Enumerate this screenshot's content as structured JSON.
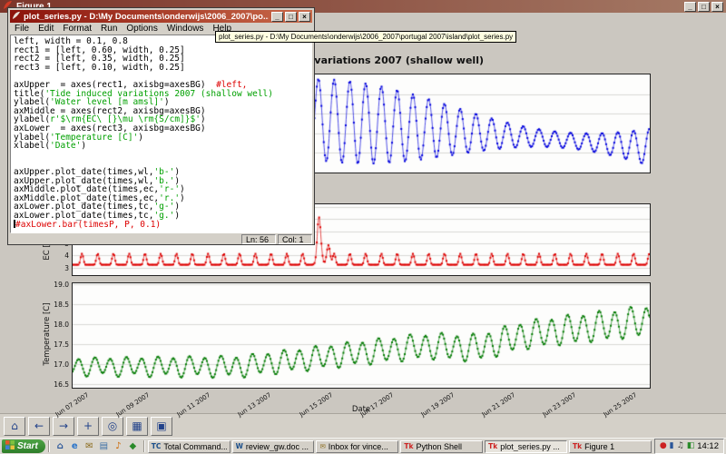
{
  "figure_window": {
    "title": "Figure 1",
    "toolbar_buttons": [
      {
        "name": "home-icon",
        "glyph": "⌂"
      },
      {
        "name": "back-icon",
        "glyph": "←"
      },
      {
        "name": "forward-icon",
        "glyph": "→"
      },
      {
        "name": "pan-icon",
        "glyph": "+"
      },
      {
        "name": "zoom-icon",
        "glyph": "◎"
      },
      {
        "name": "subplots-icon",
        "glyph": "▦"
      },
      {
        "name": "save-icon",
        "glyph": "▣"
      }
    ]
  },
  "window_controls": {
    "minimize": "_",
    "maximize": "□",
    "close": "×"
  },
  "editor_window": {
    "title": "plot_series.py - D:\\My Documents\\onderwijs\\2006_2007\\po...",
    "menus": [
      "File",
      "Edit",
      "Format",
      "Run",
      "Options",
      "Windows",
      "Help"
    ],
    "status_line": "Ln: 56",
    "status_col": "Col: 1",
    "code_lines": [
      {
        "segs": [
          {
            "t": "left, width = 0.1, 0.8",
            "c": "k"
          }
        ]
      },
      {
        "segs": [
          {
            "t": "rect1 = [left, 0.60, width, 0.25]",
            "c": "k"
          }
        ]
      },
      {
        "segs": [
          {
            "t": "rect2 = [left, 0.35, width, 0.25]",
            "c": "k"
          }
        ]
      },
      {
        "segs": [
          {
            "t": "rect3 = [left, 0.10, width, 0.25]",
            "c": "k"
          }
        ]
      },
      {
        "segs": [
          {
            "t": "",
            "c": "k"
          }
        ]
      },
      {
        "segs": [
          {
            "t": "axUpper  = axes(rect1, axisbg=axesBG)  ",
            "c": "k"
          },
          {
            "t": "#left,",
            "c": "c"
          }
        ]
      },
      {
        "segs": [
          {
            "t": "title(",
            "c": "k"
          },
          {
            "t": "'Tide induced variations 2007 (shallow well)",
            "c": "s"
          }
        ]
      },
      {
        "segs": [
          {
            "t": "ylabel(",
            "c": "k"
          },
          {
            "t": "'Water level [m amsl]'",
            "c": "s"
          },
          {
            "t": ")",
            "c": "k"
          }
        ]
      },
      {
        "segs": [
          {
            "t": "axMiddle = axes(rect2, axisbg=axesBG)",
            "c": "k"
          }
        ]
      },
      {
        "segs": [
          {
            "t": "ylabel(",
            "c": "k"
          },
          {
            "t": "r'$\\rm{EC\\ [}\\mu \\rm{S/cm]}$'",
            "c": "s"
          },
          {
            "t": ")",
            "c": "k"
          }
        ]
      },
      {
        "segs": [
          {
            "t": "axLower  = axes(rect3, axisbg=axesBG)",
            "c": "k"
          }
        ]
      },
      {
        "segs": [
          {
            "t": "ylabel(",
            "c": "k"
          },
          {
            "t": "'Temperature [C]'",
            "c": "s"
          },
          {
            "t": ")",
            "c": "k"
          }
        ]
      },
      {
        "segs": [
          {
            "t": "xlabel(",
            "c": "k"
          },
          {
            "t": "'Date'",
            "c": "s"
          },
          {
            "t": ")",
            "c": "k"
          }
        ]
      },
      {
        "segs": [
          {
            "t": "",
            "c": "k"
          }
        ]
      },
      {
        "segs": [
          {
            "t": "",
            "c": "k"
          }
        ]
      },
      {
        "segs": [
          {
            "t": "axUpper.plot_date(times,wl,",
            "c": "k"
          },
          {
            "t": "'b-'",
            "c": "s"
          },
          {
            "t": ")",
            "c": "k"
          }
        ]
      },
      {
        "segs": [
          {
            "t": "axUpper.plot_date(times,wl,",
            "c": "k"
          },
          {
            "t": "'b.'",
            "c": "s"
          },
          {
            "t": ")",
            "c": "k"
          }
        ]
      },
      {
        "segs": [
          {
            "t": "axMiddle.plot_date(times,ec,",
            "c": "k"
          },
          {
            "t": "'r-'",
            "c": "s"
          },
          {
            "t": ")",
            "c": "k"
          }
        ]
      },
      {
        "segs": [
          {
            "t": "axMiddle.plot_date(times,ec,",
            "c": "k"
          },
          {
            "t": "'r.'",
            "c": "s"
          },
          {
            "t": ")",
            "c": "k"
          }
        ]
      },
      {
        "segs": [
          {
            "t": "axLower.plot_date(times,tc,",
            "c": "k"
          },
          {
            "t": "'g-'",
            "c": "s"
          },
          {
            "t": ")",
            "c": "k"
          }
        ]
      },
      {
        "segs": [
          {
            "t": "axLower.plot_date(times,tc,",
            "c": "k"
          },
          {
            "t": "'g.'",
            "c": "s"
          },
          {
            "t": ")",
            "c": "k"
          }
        ]
      },
      {
        "cursor": true,
        "segs": [
          {
            "t": "#axLower.bar(timesP, P, 0.1)",
            "c": "c"
          }
        ]
      }
    ]
  },
  "tooltip": {
    "text": "plot_series.py - D:\\My Documents\\onderwijs\\2006_2007\\portugal 2007\\island\\plot_series.py"
  },
  "taskbar": {
    "start_label": "Start",
    "quick_launch": [
      {
        "icon": "show-desktop-icon",
        "glyph": "⌂",
        "color": "#2a5699"
      },
      {
        "icon": "internet-explorer-icon",
        "glyph": "e",
        "color": "#2a74c9"
      },
      {
        "icon": "outlook-icon",
        "glyph": "✉",
        "color": "#8a6a1a"
      },
      {
        "icon": "explorer-icon",
        "glyph": "▤",
        "color": "#3a6ea5"
      },
      {
        "icon": "media-player-icon",
        "glyph": "♪",
        "color": "#cc6600"
      },
      {
        "icon": "app-icon",
        "glyph": "◆",
        "color": "#2a8a2a"
      }
    ],
    "tasks": [
      {
        "label": "Total Command...",
        "icon": "total-commander-icon",
        "glyph": "TC",
        "color": "#1a4e8a",
        "active": false
      },
      {
        "label": "review_gw.doc ...",
        "icon": "word-document-icon",
        "glyph": "W",
        "color": "#1a4e8a",
        "active": false
      },
      {
        "label": "Inbox for vince...",
        "icon": "mail-inbox-icon",
        "glyph": "✉",
        "color": "#8a6a1a",
        "active": false
      },
      {
        "label": "Python Shell",
        "icon": "python-shell-icon",
        "glyph": "Tk",
        "color": "#cc2222",
        "active": false
      },
      {
        "label": "plot_series.py ...",
        "icon": "python-editor-icon",
        "glyph": "Tk",
        "color": "#cc2222",
        "active": true
      },
      {
        "label": "Figure 1",
        "icon": "figure-window-icon",
        "glyph": "Tk",
        "color": "#cc2222",
        "active": false
      }
    ],
    "tray_icons": [
      {
        "icon": "antivirus-tray-icon",
        "glyph": "●",
        "color": "#cc2222"
      },
      {
        "icon": "network-tray-icon",
        "glyph": "▮",
        "color": "#2a5699"
      },
      {
        "icon": "volume-tray-icon",
        "glyph": "♫",
        "color": "#444444"
      },
      {
        "icon": "updates-tray-icon",
        "glyph": "◧",
        "color": "#2a8a2a"
      }
    ],
    "clock": "14:12"
  },
  "chart_data": [
    {
      "type": "line",
      "axes": "upper",
      "title": "Tide induced variations 2007 (shallow well)",
      "ylabel": "Water level [m amsl]",
      "series_color": "#0000dd",
      "marker": "point",
      "x_range_days": [
        6.55,
        25.5
      ],
      "x_unit": "day of June 2007",
      "ylim": [
        0,
        1
      ],
      "yticks": [],
      "gridlines": [
        0.2,
        0.4,
        0.6,
        0.8
      ],
      "signal": {
        "kind": "tide",
        "period": 0.5175,
        "mean_start": 0.75,
        "mean_slope": -0.026,
        "amp_base": 0.08,
        "amp_spring": 0.34,
        "spring_center": 15.3,
        "spring_period": 14.77
      }
    },
    {
      "type": "line",
      "axes": "middle",
      "ylabel": "EC [µS/cm]",
      "series_color": "#dd0000",
      "marker": "point",
      "x_range_days": [
        6.55,
        25.5
      ],
      "ylim": [
        2.4,
        8.2
      ],
      "yticks": [
        {
          "v": 8,
          "label": "8"
        },
        {
          "v": 7,
          "label": "7"
        },
        {
          "v": 6,
          "label": "6"
        },
        {
          "v": 5,
          "label": "5"
        },
        {
          "v": 4,
          "label": "4"
        },
        {
          "v": 3,
          "label": "3"
        }
      ],
      "signal": {
        "kind": "ec",
        "base": 3.25,
        "osc_amp": 0.9,
        "period": 0.5175,
        "spikes": [
          {
            "t": 14.65,
            "h": 3.1,
            "w": 0.09
          },
          {
            "t": 14.95,
            "h": 1.6,
            "w": 0.08
          }
        ]
      }
    },
    {
      "type": "line",
      "axes": "lower",
      "ylabel": "Temperature [C]",
      "xlabel": "Date",
      "series_color": "#007a00",
      "marker": "point",
      "x_range_days": [
        6.55,
        25.5
      ],
      "ylim": [
        16.42,
        19.03
      ],
      "yticks": [
        {
          "v": 19.0,
          "label": "19.0"
        },
        {
          "v": 18.5,
          "label": "18.5"
        },
        {
          "v": 18.0,
          "label": "18.0"
        },
        {
          "v": 17.5,
          "label": "17.5"
        },
        {
          "v": 17.0,
          "label": "17.0"
        },
        {
          "v": 16.5,
          "label": "16.5"
        }
      ],
      "xticks": [
        {
          "t": 7,
          "label": "Jun 07 2007"
        },
        {
          "t": 9,
          "label": "Jun 09 2007"
        },
        {
          "t": 11,
          "label": "Jun 11 2007"
        },
        {
          "t": 13,
          "label": "Jun 13 2007"
        },
        {
          "t": 15,
          "label": "Jun 15 2007"
        },
        {
          "t": 17,
          "label": "Jun 17 2007"
        },
        {
          "t": 19,
          "label": "Jun 19 2007"
        },
        {
          "t": 21,
          "label": "Jun 21 2007"
        },
        {
          "t": 23,
          "label": "Jun 23 2007"
        },
        {
          "t": 25,
          "label": "Jun 25 2007"
        }
      ],
      "signal": {
        "kind": "temp",
        "base": 16.95,
        "rise_start": 12.0,
        "rise_rate": 0.085,
        "amp_start": 0.2,
        "amp_end": 0.36,
        "period": 0.5175,
        "second_period": 1.03,
        "second_amp": 0.05,
        "dip_t": 19.8,
        "dip_h": 0.18,
        "dip_w": 1.1
      }
    }
  ]
}
